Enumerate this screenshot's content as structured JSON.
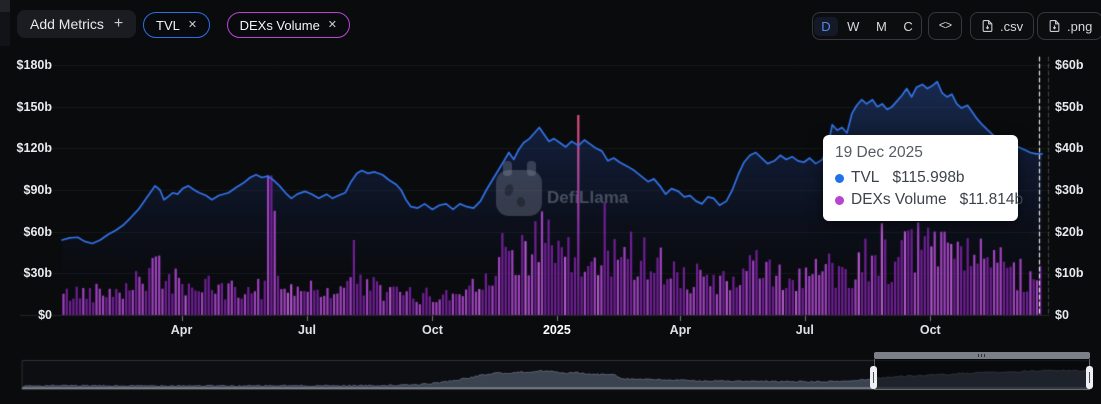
{
  "toolbar": {
    "add_metrics": {
      "label": "Add Metrics",
      "icon": "+"
    },
    "metric_pills": [
      {
        "label": "TVL",
        "color": "#2b6fe4",
        "remove_icon": "✕"
      },
      {
        "label": "DEXs Volume",
        "color": "#bb43d6",
        "remove_icon": "✕"
      }
    ],
    "range_buttons": [
      "D",
      "W",
      "M",
      "C"
    ],
    "active_range": "D",
    "embed_icon": "<>",
    "csv_label": ".csv",
    "png_label": ".png"
  },
  "watermark": {
    "label": "DefiLlama"
  },
  "tooltip": {
    "date": "19 Dec 2025",
    "rows": [
      {
        "label": "TVL",
        "value": "$115.998b",
        "color": "#2172e5"
      },
      {
        "label": "DEXs Volume",
        "value": "$11.814b",
        "color": "#b743cf"
      }
    ]
  },
  "chart_data": {
    "type": "mixed",
    "title": "TVL and DEXs Volume over time",
    "legend_position": "tooltip",
    "grid": true,
    "x_ticks": [
      {
        "label": "Apr",
        "pos": 0.122,
        "bold": false
      },
      {
        "label": "Jul",
        "pos": 0.25,
        "bold": false
      },
      {
        "label": "Oct",
        "pos": 0.378,
        "bold": false
      },
      {
        "label": "2025",
        "pos": 0.505,
        "bold": true
      },
      {
        "label": "Apr",
        "pos": 0.631,
        "bold": false
      },
      {
        "label": "Jul",
        "pos": 0.758,
        "bold": false
      },
      {
        "label": "Oct",
        "pos": 0.886,
        "bold": false
      }
    ],
    "y_left": {
      "name": "TVL",
      "unit": "$b",
      "range": [
        0,
        180
      ],
      "labels": [
        "$180b",
        "$150b",
        "$120b",
        "$90b",
        "$60b",
        "$30b",
        "$0"
      ]
    },
    "y_right": {
      "name": "DEXs Volume",
      "unit": "$b",
      "range": [
        0,
        60
      ],
      "labels": [
        "$60b",
        "$50b",
        "$40b",
        "$30b",
        "$20b",
        "$10b",
        "$0"
      ]
    },
    "series": [
      {
        "name": "TVL",
        "type": "line",
        "axis": "left",
        "color": "#3273e8",
        "unit": "$b",
        "points": [
          [
            0.0,
            54
          ],
          [
            0.008,
            55.5
          ],
          [
            0.016,
            56
          ],
          [
            0.023,
            53
          ],
          [
            0.031,
            51.5
          ],
          [
            0.039,
            54
          ],
          [
            0.047,
            58
          ],
          [
            0.055,
            61
          ],
          [
            0.063,
            65
          ],
          [
            0.07,
            70
          ],
          [
            0.078,
            76
          ],
          [
            0.086,
            84
          ],
          [
            0.092,
            90
          ],
          [
            0.095,
            93
          ],
          [
            0.1,
            90
          ],
          [
            0.104,
            83
          ],
          [
            0.108,
            85
          ],
          [
            0.113,
            88
          ],
          [
            0.118,
            87
          ],
          [
            0.123,
            91
          ],
          [
            0.129,
            93
          ],
          [
            0.135,
            90
          ],
          [
            0.14,
            88
          ],
          [
            0.147,
            86
          ],
          [
            0.153,
            83
          ],
          [
            0.16,
            86
          ],
          [
            0.17,
            88
          ],
          [
            0.178,
            92
          ],
          [
            0.185,
            95
          ],
          [
            0.192,
            99
          ],
          [
            0.198,
            101
          ],
          [
            0.204,
            99
          ],
          [
            0.21,
            100
          ],
          [
            0.216,
            97
          ],
          [
            0.222,
            93
          ],
          [
            0.228,
            88
          ],
          [
            0.234,
            84
          ],
          [
            0.24,
            87
          ],
          [
            0.248,
            89
          ],
          [
            0.255,
            87
          ],
          [
            0.262,
            84
          ],
          [
            0.27,
            87
          ],
          [
            0.276,
            84
          ],
          [
            0.282,
            86
          ],
          [
            0.289,
            88
          ],
          [
            0.295,
            96
          ],
          [
            0.301,
            102
          ],
          [
            0.306,
            104
          ],
          [
            0.312,
            102
          ],
          [
            0.319,
            103
          ],
          [
            0.327,
            101
          ],
          [
            0.334,
            97
          ],
          [
            0.341,
            94
          ],
          [
            0.346,
            90
          ],
          [
            0.351,
            83
          ],
          [
            0.356,
            78
          ],
          [
            0.363,
            77
          ],
          [
            0.37,
            80
          ],
          [
            0.378,
            76
          ],
          [
            0.385,
            79
          ],
          [
            0.392,
            80
          ],
          [
            0.399,
            76
          ],
          [
            0.406,
            80
          ],
          [
            0.413,
            78
          ],
          [
            0.42,
            77
          ],
          [
            0.427,
            82
          ],
          [
            0.433,
            90
          ],
          [
            0.439,
            97
          ],
          [
            0.445,
            104
          ],
          [
            0.451,
            111
          ],
          [
            0.456,
            117
          ],
          [
            0.461,
            112
          ],
          [
            0.466,
            119
          ],
          [
            0.471,
            124
          ],
          [
            0.477,
            127
          ],
          [
            0.482,
            131
          ],
          [
            0.487,
            135
          ],
          [
            0.492,
            130
          ],
          [
            0.497,
            125
          ],
          [
            0.502,
            127
          ],
          [
            0.508,
            124
          ],
          [
            0.514,
            121
          ],
          [
            0.52,
            125
          ],
          [
            0.527,
            122
          ],
          [
            0.533,
            126
          ],
          [
            0.539,
            123
          ],
          [
            0.545,
            120
          ],
          [
            0.551,
            118
          ],
          [
            0.557,
            111
          ],
          [
            0.563,
            113
          ],
          [
            0.569,
            110
          ],
          [
            0.577,
            107
          ],
          [
            0.584,
            104
          ],
          [
            0.591,
            100
          ],
          [
            0.598,
            96
          ],
          [
            0.604,
            98
          ],
          [
            0.61,
            93
          ],
          [
            0.616,
            87
          ],
          [
            0.622,
            91
          ],
          [
            0.629,
            89
          ],
          [
            0.635,
            85
          ],
          [
            0.641,
            86
          ],
          [
            0.647,
            82
          ],
          [
            0.653,
            80
          ],
          [
            0.659,
            85
          ],
          [
            0.665,
            84
          ],
          [
            0.671,
            79
          ],
          [
            0.678,
            82
          ],
          [
            0.684,
            90
          ],
          [
            0.69,
            101
          ],
          [
            0.696,
            110
          ],
          [
            0.702,
            115
          ],
          [
            0.708,
            117
          ],
          [
            0.714,
            113
          ],
          [
            0.72,
            109
          ],
          [
            0.727,
            111
          ],
          [
            0.733,
            115
          ],
          [
            0.739,
            112
          ],
          [
            0.745,
            114
          ],
          [
            0.751,
            111
          ],
          [
            0.757,
            110
          ],
          [
            0.763,
            113
          ],
          [
            0.769,
            109
          ],
          [
            0.776,
            112
          ],
          [
            0.781,
            120
          ],
          [
            0.786,
            137
          ],
          [
            0.791,
            133
          ],
          [
            0.796,
            135
          ],
          [
            0.801,
            131
          ],
          [
            0.806,
            145
          ],
          [
            0.811,
            151
          ],
          [
            0.816,
            155
          ],
          [
            0.821,
            152
          ],
          [
            0.827,
            155
          ],
          [
            0.832,
            150
          ],
          [
            0.837,
            152
          ],
          [
            0.842,
            148
          ],
          [
            0.847,
            150
          ],
          [
            0.852,
            154
          ],
          [
            0.857,
            158
          ],
          [
            0.862,
            163
          ],
          [
            0.867,
            157
          ],
          [
            0.872,
            164
          ],
          [
            0.878,
            166
          ],
          [
            0.883,
            163
          ],
          [
            0.888,
            165
          ],
          [
            0.893,
            168
          ],
          [
            0.898,
            160
          ],
          [
            0.903,
            157
          ],
          [
            0.908,
            159
          ],
          [
            0.913,
            152
          ],
          [
            0.918,
            149
          ],
          [
            0.924,
            151
          ],
          [
            0.929,
            146
          ],
          [
            0.934,
            141
          ],
          [
            0.939,
            137
          ],
          [
            0.945,
            133
          ],
          [
            0.951,
            129
          ],
          [
            0.957,
            127
          ],
          [
            0.963,
            125
          ],
          [
            0.969,
            123
          ],
          [
            0.976,
            121
          ],
          [
            0.982,
            119
          ],
          [
            0.988,
            117
          ],
          [
            0.994,
            116
          ],
          [
            1.0,
            115.998
          ]
        ]
      },
      {
        "name": "DEXs Volume",
        "type": "bar",
        "axis": "right",
        "color_light": "#a844c9",
        "color_dark": "#74219b",
        "unit": "$b",
        "envelope": [
          [
            0.0,
            5
          ],
          [
            0.03,
            6
          ],
          [
            0.06,
            7
          ],
          [
            0.08,
            10
          ],
          [
            0.1,
            11
          ],
          [
            0.12,
            8
          ],
          [
            0.15,
            7
          ],
          [
            0.18,
            6
          ],
          [
            0.2,
            7
          ],
          [
            0.215,
            9
          ],
          [
            0.24,
            7
          ],
          [
            0.27,
            6
          ],
          [
            0.3,
            8
          ],
          [
            0.33,
            6
          ],
          [
            0.36,
            5
          ],
          [
            0.39,
            5
          ],
          [
            0.41,
            6
          ],
          [
            0.43,
            11
          ],
          [
            0.45,
            15
          ],
          [
            0.47,
            18
          ],
          [
            0.49,
            19
          ],
          [
            0.51,
            15
          ],
          [
            0.53,
            12
          ],
          [
            0.55,
            13
          ],
          [
            0.57,
            15
          ],
          [
            0.59,
            16
          ],
          [
            0.61,
            13
          ],
          [
            0.63,
            11
          ],
          [
            0.65,
            9
          ],
          [
            0.67,
            8
          ],
          [
            0.69,
            10
          ],
          [
            0.71,
            12
          ],
          [
            0.73,
            10
          ],
          [
            0.75,
            9
          ],
          [
            0.77,
            11
          ],
          [
            0.79,
            12
          ],
          [
            0.81,
            13
          ],
          [
            0.83,
            16
          ],
          [
            0.85,
            14
          ],
          [
            0.87,
            16
          ],
          [
            0.89,
            19
          ],
          [
            0.91,
            16
          ],
          [
            0.93,
            14
          ],
          [
            0.95,
            13
          ],
          [
            0.97,
            11
          ],
          [
            0.99,
            10
          ],
          [
            1.0,
            11
          ]
        ],
        "spikes": [
          [
            0.212,
            33.5
          ],
          [
            0.217,
            25
          ],
          [
            0.297,
            18
          ],
          [
            0.528,
            48
          ],
          [
            0.553,
            27
          ],
          [
            0.58,
            20
          ],
          [
            0.836,
            22
          ],
          [
            0.885,
            21
          ],
          [
            0.9,
            20
          ],
          [
            0.997,
            11.814
          ]
        ]
      }
    ],
    "crosshair": {
      "x": 0.997,
      "edge_x": 1.006
    },
    "highlight": {
      "date": "19 Dec 2025",
      "TVL": 115.998,
      "DEXs Volume": 11.814
    },
    "brush": {
      "selection": [
        0.799,
        1.0
      ],
      "profile": [
        [
          0.0,
          0.07
        ],
        [
          0.05,
          0.08
        ],
        [
          0.1,
          0.07
        ],
        [
          0.15,
          0.08
        ],
        [
          0.2,
          0.07
        ],
        [
          0.25,
          0.08
        ],
        [
          0.3,
          0.08
        ],
        [
          0.34,
          0.09
        ],
        [
          0.36,
          0.1
        ],
        [
          0.375,
          0.13
        ],
        [
          0.39,
          0.19
        ],
        [
          0.41,
          0.3
        ],
        [
          0.43,
          0.45
        ],
        [
          0.445,
          0.55
        ],
        [
          0.455,
          0.5
        ],
        [
          0.465,
          0.58
        ],
        [
          0.475,
          0.55
        ],
        [
          0.485,
          0.62
        ],
        [
          0.5,
          0.57
        ],
        [
          0.51,
          0.52
        ],
        [
          0.52,
          0.55
        ],
        [
          0.53,
          0.49
        ],
        [
          0.545,
          0.48
        ],
        [
          0.555,
          0.5
        ],
        [
          0.56,
          0.35
        ],
        [
          0.57,
          0.32
        ],
        [
          0.59,
          0.3
        ],
        [
          0.61,
          0.28
        ],
        [
          0.63,
          0.26
        ],
        [
          0.65,
          0.25
        ],
        [
          0.67,
          0.24
        ],
        [
          0.7,
          0.23
        ],
        [
          0.72,
          0.23
        ],
        [
          0.74,
          0.22
        ],
        [
          0.76,
          0.23
        ],
        [
          0.78,
          0.26
        ],
        [
          0.79,
          0.3
        ],
        [
          0.8,
          0.36
        ],
        [
          0.81,
          0.38
        ],
        [
          0.82,
          0.4
        ],
        [
          0.83,
          0.43
        ],
        [
          0.85,
          0.46
        ],
        [
          0.87,
          0.49
        ],
        [
          0.89,
          0.53
        ],
        [
          0.91,
          0.56
        ],
        [
          0.93,
          0.58
        ],
        [
          0.95,
          0.61
        ],
        [
          0.97,
          0.63
        ],
        [
          0.99,
          0.61
        ],
        [
          1.0,
          0.62
        ]
      ]
    }
  }
}
